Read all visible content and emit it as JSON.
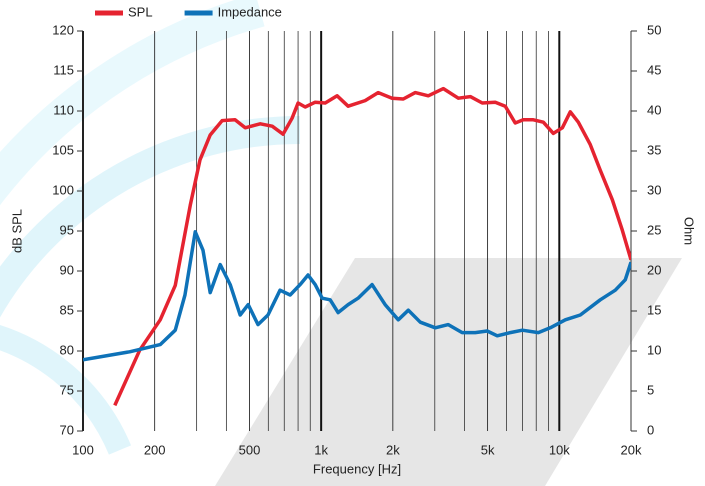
{
  "chart_data": {
    "type": "line",
    "xlabel": "Frequency [Hz]",
    "ylabel": "dB SPL",
    "y2label": "Ohm",
    "xscale": "log",
    "xgrid": true,
    "xlim": [
      100,
      20000
    ],
    "xticks": [
      100,
      200,
      500,
      {
        "value": 1000,
        "label": "1k"
      },
      {
        "value": 2000,
        "label": "2k"
      },
      {
        "value": 5000,
        "label": "5k"
      },
      {
        "value": 10000,
        "label": "10k"
      },
      {
        "value": 20000,
        "label": "20k"
      }
    ],
    "xminor": [
      300,
      400,
      600,
      700,
      800,
      900,
      3000,
      4000,
      6000,
      7000,
      8000,
      9000
    ],
    "ylim": [
      70,
      120
    ],
    "yticks": [
      70,
      75,
      80,
      85,
      90,
      95,
      100,
      105,
      110,
      115,
      120
    ],
    "y2lim": [
      0,
      50
    ],
    "y2ticks": [
      0,
      5,
      10,
      15,
      20,
      25,
      30,
      35,
      40,
      45,
      50
    ],
    "legend": "top",
    "series": [
      {
        "name": "SPL",
        "color": "#e52330",
        "x": [
          136,
          173,
          211,
          244,
          282,
          310,
          342,
          384,
          435,
          480,
          555,
          623,
          692,
          755,
          800,
          857,
          944,
          1040,
          1167,
          1298,
          1530,
          1735,
          1985,
          2212,
          2484,
          2817,
          3260,
          3767,
          4230,
          4747,
          5383,
          5930,
          6530,
          7060,
          7780,
          8570,
          9440,
          10300,
          11120,
          12020,
          13490,
          14860,
          16700,
          18390,
          20000
        ],
        "values": [
          73.2,
          80.1,
          83.9,
          88.2,
          98.2,
          103.9,
          107,
          108.8,
          108.9,
          107.9,
          108.4,
          108.1,
          107.1,
          109.1,
          111,
          110.5,
          111.1,
          111,
          111.9,
          110.6,
          111.3,
          112.3,
          111.6,
          111.5,
          112.3,
          111.9,
          112.8,
          111.6,
          111.8,
          111,
          111.1,
          110.6,
          108.5,
          108.9,
          108.9,
          108.6,
          107.2,
          107.9,
          109.9,
          108.6,
          105.8,
          102.6,
          98.9,
          95.1,
          91.4
        ]
      },
      {
        "name": "Impedance",
        "color": "#0e72b8",
        "axis": "y2",
        "x": [
          100,
          157,
          211,
          244,
          268,
          296,
          319,
          342,
          377,
          415,
          457,
          494,
          543,
          598,
          672,
          741,
          816,
          881,
          944,
          1010,
          1091,
          1178,
          1298,
          1429,
          1636,
          1856,
          2108,
          2323,
          2608,
          3014,
          3418,
          3910,
          4436,
          4980,
          5488,
          6222,
          6996,
          8165,
          9163,
          10600,
          12250,
          14860,
          17180,
          18920,
          20000
        ],
        "values": [
          8.9,
          9.9,
          10.8,
          12.6,
          17,
          24.9,
          22.6,
          17.3,
          20.8,
          18.3,
          14.5,
          15.8,
          13.3,
          14.5,
          17.6,
          17,
          18.3,
          19.5,
          18.3,
          16.6,
          16.4,
          14.8,
          15.8,
          16.6,
          18.3,
          15.8,
          13.9,
          15.1,
          13.6,
          12.9,
          13.3,
          12.3,
          12.3,
          12.5,
          11.9,
          12.3,
          12.6,
          12.3,
          12.9,
          13.9,
          14.5,
          16.4,
          17.6,
          18.9,
          21.1
        ]
      }
    ]
  }
}
